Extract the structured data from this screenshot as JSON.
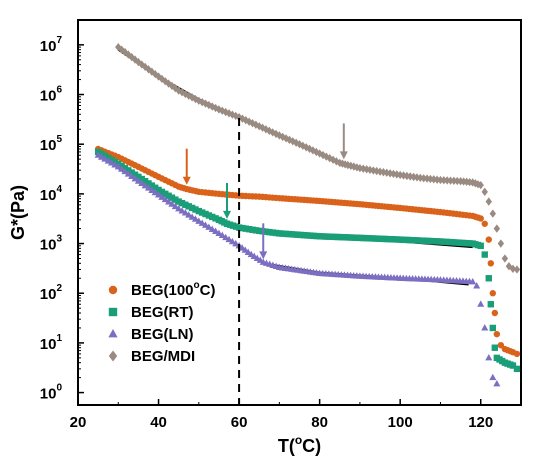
{
  "chart_data": {
    "type": "scatter",
    "title": "",
    "xlabel_base": "T(",
    "xlabel_sup": "o",
    "xlabel_unit": "C)",
    "ylabel": "G*(Pa)",
    "xlim": [
      20,
      130
    ],
    "ylim_log10": [
      -0.25,
      7.5
    ],
    "y_scale": "log",
    "grid": false,
    "x_ticks": [
      {
        "v": 20,
        "label": "20"
      },
      {
        "v": 40,
        "label": "40"
      },
      {
        "v": 60,
        "label": "60"
      },
      {
        "v": 80,
        "label": "80"
      },
      {
        "v": 100,
        "label": "100"
      },
      {
        "v": 120,
        "label": "120"
      }
    ],
    "y_ticks": [
      {
        "exp": 0,
        "base": "10",
        "sup": "0"
      },
      {
        "exp": 1,
        "base": "10",
        "sup": "1"
      },
      {
        "exp": 2,
        "base": "10",
        "sup": "2"
      },
      {
        "exp": 3,
        "base": "10",
        "sup": "3"
      },
      {
        "exp": 4,
        "base": "10",
        "sup": "4"
      },
      {
        "exp": 5,
        "base": "10",
        "sup": "5"
      },
      {
        "exp": 6,
        "base": "10",
        "sup": "6"
      },
      {
        "exp": 7,
        "base": "10",
        "sup": "7"
      }
    ],
    "legend_position": "lower-left",
    "vline_x": 60,
    "series": [
      {
        "name": "BEG(100°C)",
        "legend_base": "BEG(100",
        "legend_sup": "o",
        "legend_tail": "C)",
        "marker": "circle",
        "color": "#d9631a",
        "points": [
          [
            25,
            80000
          ],
          [
            30,
            55000
          ],
          [
            35,
            35000
          ],
          [
            40,
            22000
          ],
          [
            45,
            14000
          ],
          [
            47,
            12500
          ],
          [
            50,
            11000
          ],
          [
            55,
            10000
          ],
          [
            60,
            9200
          ],
          [
            65,
            8800
          ],
          [
            70,
            8200
          ],
          [
            80,
            7200
          ],
          [
            90,
            6200
          ],
          [
            100,
            5200
          ],
          [
            110,
            4300
          ],
          [
            118,
            3600
          ],
          [
            120,
            3200
          ],
          [
            121,
            2500
          ],
          [
            122,
            1200
          ],
          [
            122.5,
            400
          ],
          [
            123,
            100
          ],
          [
            123.5,
            40
          ],
          [
            124,
            15
          ],
          [
            125,
            9
          ],
          [
            126,
            7.5
          ],
          [
            128,
            6.5
          ],
          [
            129,
            6
          ]
        ],
        "fit": [
          [
            25,
            80000
          ],
          [
            30,
            55000
          ],
          [
            35,
            35000
          ],
          [
            40,
            22000
          ],
          [
            45,
            14000
          ],
          [
            50,
            11000
          ],
          [
            60,
            9200
          ],
          [
            80,
            7200
          ],
          [
            100,
            5200
          ],
          [
            118,
            3500
          ]
        ],
        "arrow_x": 47
      },
      {
        "name": "BEG(RT)",
        "legend_base": "BEG(RT)",
        "legend_sup": "",
        "legend_tail": "",
        "marker": "square",
        "color": "#1a9e77",
        "points": [
          [
            25,
            70000
          ],
          [
            30,
            40000
          ],
          [
            35,
            22000
          ],
          [
            40,
            12000
          ],
          [
            45,
            7000
          ],
          [
            50,
            4500
          ],
          [
            55,
            3000
          ],
          [
            57,
            2500
          ],
          [
            60,
            2100
          ],
          [
            65,
            1800
          ],
          [
            70,
            1600
          ],
          [
            80,
            1400
          ],
          [
            90,
            1300
          ],
          [
            100,
            1200
          ],
          [
            110,
            1100
          ],
          [
            118,
            1000
          ],
          [
            120,
            900
          ],
          [
            121,
            600
          ],
          [
            122,
            200
          ],
          [
            122.5,
            60
          ],
          [
            123,
            20
          ],
          [
            123.5,
            8
          ],
          [
            124,
            5
          ],
          [
            126,
            4
          ],
          [
            128,
            3.5
          ],
          [
            129,
            3
          ]
        ],
        "fit": [
          [
            25,
            70000
          ],
          [
            35,
            22000
          ],
          [
            45,
            7000
          ],
          [
            55,
            3000
          ],
          [
            60,
            2100
          ],
          [
            80,
            1400
          ],
          [
            100,
            1100
          ],
          [
            118,
            850
          ]
        ],
        "arrow_x": 57
      },
      {
        "name": "BEG(LN)",
        "legend_base": "BEG(LN)",
        "legend_sup": "",
        "legend_tail": "",
        "marker": "triangle",
        "color": "#7b6fc2",
        "points": [
          [
            25,
            60000
          ],
          [
            30,
            35000
          ],
          [
            35,
            18000
          ],
          [
            40,
            9500
          ],
          [
            45,
            5000
          ],
          [
            50,
            2800
          ],
          [
            55,
            1600
          ],
          [
            60,
            900
          ],
          [
            63,
            600
          ],
          [
            66,
            420
          ],
          [
            70,
            330
          ],
          [
            80,
            250
          ],
          [
            90,
            220
          ],
          [
            100,
            200
          ],
          [
            110,
            185
          ],
          [
            118,
            170
          ],
          [
            119,
            140
          ],
          [
            120,
            60
          ],
          [
            121,
            20
          ],
          [
            122,
            5
          ],
          [
            123,
            2
          ],
          [
            124,
            1.5
          ]
        ],
        "fit": [
          [
            25,
            60000
          ],
          [
            35,
            18000
          ],
          [
            45,
            5000
          ],
          [
            55,
            1600
          ],
          [
            60,
            900
          ],
          [
            66,
            400
          ],
          [
            80,
            260
          ],
          [
            100,
            200
          ],
          [
            117,
            150
          ]
        ],
        "arrow_x": 66
      },
      {
        "name": "BEG/MDI",
        "legend_base": "BEG/MDI",
        "legend_sup": "",
        "legend_tail": "",
        "marker": "diamond",
        "color": "#9a8b82",
        "points": [
          [
            30,
            9000000
          ],
          [
            35,
            4500000
          ],
          [
            40,
            2300000
          ],
          [
            45,
            1200000
          ],
          [
            50,
            750000
          ],
          [
            55,
            500000
          ],
          [
            60,
            350000
          ],
          [
            65,
            230000
          ],
          [
            70,
            150000
          ],
          [
            75,
            100000
          ],
          [
            80,
            65000
          ],
          [
            85,
            42000
          ],
          [
            87,
            38000
          ],
          [
            90,
            33000
          ],
          [
            95,
            28000
          ],
          [
            100,
            24000
          ],
          [
            105,
            21000
          ],
          [
            110,
            19000
          ],
          [
            115,
            18000
          ],
          [
            118,
            17000
          ],
          [
            120,
            15000
          ],
          [
            121,
            11000
          ],
          [
            122,
            7000
          ],
          [
            123,
            4000
          ],
          [
            124,
            2000
          ],
          [
            125,
            1000
          ],
          [
            126,
            500
          ],
          [
            127,
            350
          ],
          [
            128,
            310
          ],
          [
            129,
            300
          ]
        ],
        "fit": [
          [
            30,
            8000000
          ],
          [
            40,
            2300000
          ],
          [
            50,
            800000
          ],
          [
            60,
            350000
          ],
          [
            70,
            150000
          ],
          [
            80,
            65000
          ],
          [
            87,
            38000
          ],
          [
            100,
            24000
          ],
          [
            118,
            16000
          ]
        ],
        "arrow_x": 86
      }
    ]
  }
}
